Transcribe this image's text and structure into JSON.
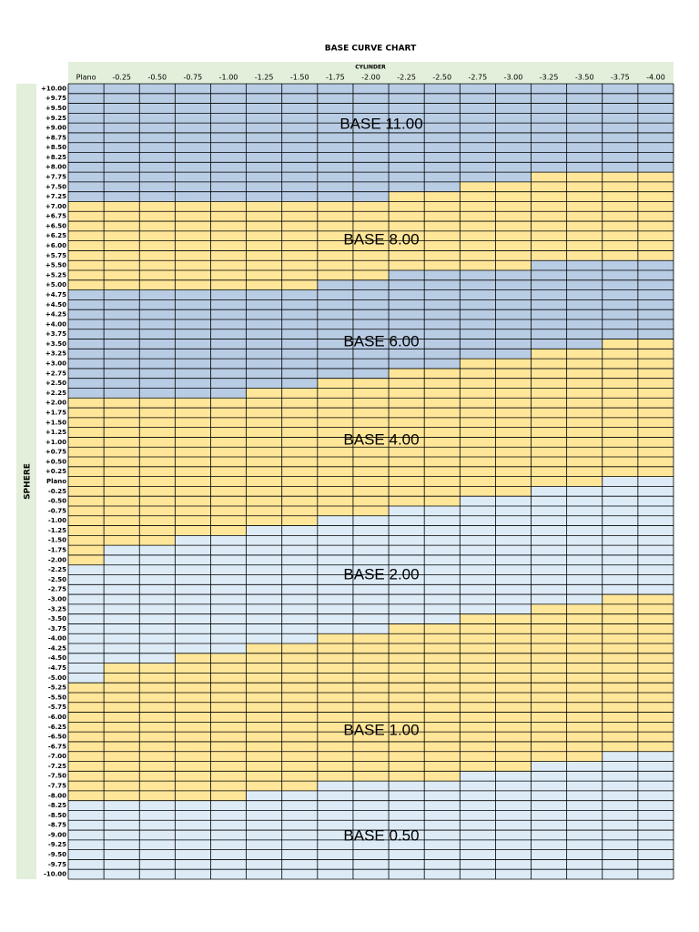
{
  "title": "BASE CURVE CHART",
  "column_header": "CYLINDER",
  "row_header": "SPHERE",
  "columns": [
    "Plano",
    "-0.25",
    "-0.50",
    "-0.75",
    "-1.00",
    "-1.25",
    "-1.50",
    "-1.75",
    "-2.00",
    "-2.25",
    "-2.50",
    "-2.75",
    "-3.00",
    "-3.25",
    "-3.50",
    "-3.75",
    "-4.00"
  ],
  "rows": [
    "+10.00",
    "+9.75",
    "+9.50",
    "+9.25",
    "+9.00",
    "+8.75",
    "+8.50",
    "+8.25",
    "+8.00",
    "+7.75",
    "+7.50",
    "+7.25",
    "+7.00",
    "+6.75",
    "+6.50",
    "+6.25",
    "+6.00",
    "+5.75",
    "+5.50",
    "+5.25",
    "+5.00",
    "+4.75",
    "+4.50",
    "+4.25",
    "+4.00",
    "+3.75",
    "+3.50",
    "+3.25",
    "+3.00",
    "+2.75",
    "+2.50",
    "+2.25",
    "+2.00",
    "+1.75",
    "+1.50",
    "+1.25",
    "+1.00",
    "+0.75",
    "+0.50",
    "+0.25",
    "Plano",
    "-0.25",
    "-0.50",
    "-0.75",
    "-1.00",
    "-1.25",
    "-1.50",
    "-1.75",
    "-2.00",
    "-2.25",
    "-2.50",
    "-2.75",
    "-3.00",
    "-3.25",
    "-3.50",
    "-3.75",
    "-4.00",
    "-4.25",
    "-4.50",
    "-4.75",
    "-5.00",
    "-5.25",
    "-5.50",
    "-5.75",
    "-6.00",
    "-6.25",
    "-6.50",
    "-6.75",
    "-7.00",
    "-7.25",
    "-7.50",
    "-7.75",
    "-8.00",
    "-8.25",
    "-8.50",
    "-8.75",
    "-9.00",
    "-9.25",
    "-9.50",
    "-9.75",
    "-10.00"
  ],
  "bases": [
    {
      "label": "BASE 11.00",
      "color": "#b8cce4",
      "top": [
        "+10.00",
        "+10.00",
        "+10.00",
        "+10.00",
        "+10.00",
        "+10.00",
        "+10.00",
        "+10.00",
        "+10.00",
        "+10.00",
        "+10.00",
        "+10.00",
        "+10.00",
        "+10.00",
        "+10.00",
        "+10.00",
        "+10.00"
      ]
    },
    {
      "label": "BASE 8.00",
      "color": "#ffe699",
      "top": [
        "+7.00",
        "+7.00",
        "+7.00",
        "+7.00",
        "+7.00",
        "+7.00",
        "+7.00",
        "+7.00",
        "+7.00",
        "+7.25",
        "+7.25",
        "+7.50",
        "+7.50",
        "+7.75",
        "+7.75",
        "+7.75",
        "+7.75"
      ]
    },
    {
      "label": "BASE 6.00",
      "color": "#b8cce4",
      "top": [
        "+4.75",
        "+4.75",
        "+4.75",
        "+4.75",
        "+4.75",
        "+4.75",
        "+4.75",
        "+5.00",
        "+5.00",
        "+5.25",
        "+5.25",
        "+5.25",
        "+5.25",
        "+5.50",
        "+5.50",
        "+5.50",
        "+5.50"
      ]
    },
    {
      "label": "BASE 4.00",
      "color": "#ffe699",
      "top": [
        "+2.00",
        "+2.00",
        "+2.00",
        "+2.00",
        "+2.00",
        "+2.25",
        "+2.25",
        "+2.50",
        "+2.50",
        "+2.75",
        "+2.75",
        "+3.00",
        "+3.00",
        "+3.25",
        "+3.25",
        "+3.50",
        "+3.50"
      ]
    },
    {
      "label": "BASE 2.00",
      "color": "#ddebf7",
      "top": [
        "-2.25",
        "-1.75",
        "-1.75",
        "-1.50",
        "-1.50",
        "-1.25",
        "-1.25",
        "-1.00",
        "-1.00",
        "-0.75",
        "-0.75",
        "-0.50",
        "-0.50",
        "-0.25",
        "-0.25",
        "Plano",
        "Plano"
      ]
    },
    {
      "label": "BASE 1.00",
      "color": "#ffe699",
      "top": [
        "-5.25",
        "-4.75",
        "-4.75",
        "-4.50",
        "-4.50",
        "-4.25",
        "-4.25",
        "-4.00",
        "-4.00",
        "-3.75",
        "-3.75",
        "-3.50",
        "-3.50",
        "-3.25",
        "-3.25",
        "-3.00",
        "-3.00"
      ]
    },
    {
      "label": "BASE 0.50",
      "color": "#ddebf7",
      "top": [
        "-8.25",
        "-8.25",
        "-8.25",
        "-8.25",
        "-8.25",
        "-8.00",
        "-8.00",
        "-7.75",
        "-7.75",
        "-7.75",
        "-7.75",
        "-7.50",
        "-7.50",
        "-7.25",
        "-7.25",
        "-7.00",
        "-7.00"
      ]
    }
  ]
}
